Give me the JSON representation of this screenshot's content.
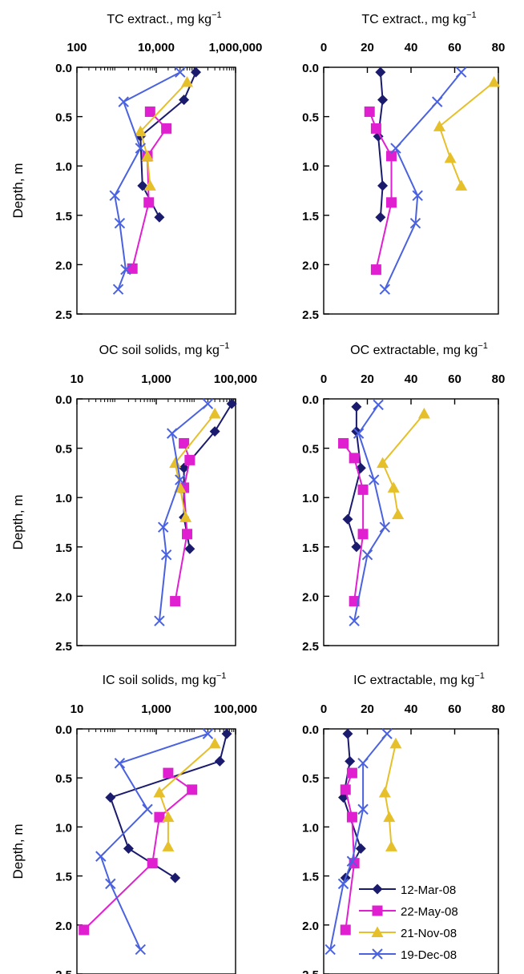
{
  "colors": {
    "12-Mar-08": "#1b1b6e",
    "22-May-08": "#e020d0",
    "21-Nov-08": "#e6c02a",
    "19-Dec-08": "#4a62e0"
  },
  "markers": {
    "12-Mar-08": "diamond",
    "22-May-08": "square",
    "21-Nov-08": "triangle",
    "19-Dec-08": "x"
  },
  "legend": [
    "12-Mar-08",
    "22-May-08",
    "21-Nov-08",
    "19-Dec-08"
  ],
  "chart_data": [
    {
      "type": "line",
      "title": "TC extract., mg kg",
      "title_sup": "−1",
      "ylabel": "Depth, m",
      "xscale": "log",
      "xlim": [
        100,
        1000000
      ],
      "xticks": [
        100,
        10000,
        1000000
      ],
      "xtick_labels": [
        "100",
        "10,000",
        "1,000,000"
      ],
      "ylim": [
        0,
        2.5
      ],
      "yticks": [
        0.0,
        0.5,
        1.0,
        1.5,
        2.0,
        2.5
      ],
      "ytick_labels": [
        "0.0",
        "0.5",
        "1.0",
        "1.5",
        "2.0",
        "2.5"
      ],
      "series": [
        {
          "name": "12-Mar-08",
          "points": [
            [
              100000,
              0.05
            ],
            [
              50000,
              0.33
            ],
            [
              4000,
              0.7
            ],
            [
              4500,
              1.2
            ],
            [
              12000,
              1.52
            ]
          ]
        },
        {
          "name": "22-May-08",
          "points": [
            [
              7000,
              0.45
            ],
            [
              18000,
              0.62
            ],
            [
              6000,
              0.9
            ],
            [
              6500,
              1.37
            ],
            [
              2500,
              2.04
            ]
          ]
        },
        {
          "name": "21-Nov-08",
          "points": [
            [
              60000,
              0.15
            ],
            [
              4000,
              0.65
            ],
            [
              6000,
              0.9
            ],
            [
              7000,
              1.2
            ]
          ]
        },
        {
          "name": "19-Dec-08",
          "points": [
            [
              40000,
              0.05
            ],
            [
              1500,
              0.35
            ],
            [
              4000,
              0.82
            ],
            [
              900,
              1.3
            ],
            [
              1200,
              1.58
            ],
            [
              1700,
              2.05
            ],
            [
              1100,
              2.25
            ]
          ]
        }
      ]
    },
    {
      "type": "line",
      "title": "TC extract., mg kg",
      "title_sup": "−1",
      "ylabel": "",
      "xscale": "linear",
      "xlim": [
        0,
        80
      ],
      "xticks": [
        0,
        20,
        40,
        60,
        80
      ],
      "xtick_labels": [
        "0",
        "20",
        "40",
        "60",
        "80"
      ],
      "ylim": [
        0,
        2.5
      ],
      "yticks": [
        0.0,
        0.5,
        1.0,
        1.5,
        2.0,
        2.5
      ],
      "ytick_labels": [
        "0.0",
        "0.5",
        "1.0",
        "1.5",
        "2.0",
        "2.5"
      ],
      "series": [
        {
          "name": "12-Mar-08",
          "points": [
            [
              26,
              0.05
            ],
            [
              27,
              0.33
            ],
            [
              25,
              0.7
            ],
            [
              27,
              1.2
            ],
            [
              26,
              1.52
            ]
          ]
        },
        {
          "name": "22-May-08",
          "points": [
            [
              21,
              0.45
            ],
            [
              24,
              0.62
            ],
            [
              31,
              0.9
            ],
            [
              31,
              1.37
            ],
            [
              24,
              2.05
            ]
          ]
        },
        {
          "name": "21-Nov-08",
          "points": [
            [
              78,
              0.15
            ],
            [
              53,
              0.6
            ],
            [
              58,
              0.92
            ],
            [
              63,
              1.2
            ]
          ]
        },
        {
          "name": "19-Dec-08",
          "points": [
            [
              63,
              0.05
            ],
            [
              52,
              0.35
            ],
            [
              33,
              0.82
            ],
            [
              43,
              1.3
            ],
            [
              42,
              1.58
            ],
            [
              28,
              2.25
            ]
          ]
        }
      ]
    },
    {
      "type": "line",
      "title": "OC soil solids, mg kg",
      "title_sup": "−1",
      "ylabel": "Depth, m",
      "xscale": "log",
      "xlim": [
        10,
        100000
      ],
      "xticks": [
        10,
        1000,
        100000
      ],
      "xtick_labels": [
        "10",
        "1,000",
        "100,000"
      ],
      "ylim": [
        0,
        2.5
      ],
      "yticks": [
        0.0,
        0.5,
        1.0,
        1.5,
        2.0,
        2.5
      ],
      "ytick_labels": [
        "0.0",
        "0.5",
        "1.0",
        "1.5",
        "2.0",
        "2.5"
      ],
      "series": [
        {
          "name": "12-Mar-08",
          "points": [
            [
              80000,
              0.05
            ],
            [
              30000,
              0.33
            ],
            [
              5000,
              0.7
            ],
            [
              5000,
              1.2
            ],
            [
              7000,
              1.52
            ]
          ]
        },
        {
          "name": "22-May-08",
          "points": [
            [
              5000,
              0.45
            ],
            [
              7000,
              0.62
            ],
            [
              5000,
              0.9
            ],
            [
              6000,
              1.37
            ],
            [
              3000,
              2.05
            ]
          ]
        },
        {
          "name": "21-Nov-08",
          "points": [
            [
              30000,
              0.15
            ],
            [
              3000,
              0.65
            ],
            [
              4000,
              0.9
            ],
            [
              5500,
              1.2
            ]
          ]
        },
        {
          "name": "19-Dec-08",
          "points": [
            [
              20000,
              0.05
            ],
            [
              2500,
              0.35
            ],
            [
              4000,
              0.82
            ],
            [
              1500,
              1.3
            ],
            [
              1800,
              1.58
            ],
            [
              1200,
              2.25
            ]
          ]
        }
      ]
    },
    {
      "type": "line",
      "title": "OC extractable, mg kg",
      "title_sup": "−1",
      "ylabel": "",
      "xscale": "linear",
      "xlim": [
        0,
        80
      ],
      "xticks": [
        0,
        20,
        40,
        60,
        80
      ],
      "xtick_labels": [
        "0",
        "20",
        "40",
        "60",
        "80"
      ],
      "ylim": [
        0,
        2.5
      ],
      "yticks": [
        0.0,
        0.5,
        1.0,
        1.5,
        2.0,
        2.5
      ],
      "ytick_labels": [
        "0.0",
        "0.5",
        "1.0",
        "1.5",
        "2.0",
        "2.5"
      ],
      "series": [
        {
          "name": "12-Mar-08",
          "points": [
            [
              15,
              0.08
            ],
            [
              15,
              0.33
            ],
            [
              17,
              0.7
            ],
            [
              11,
              1.22
            ],
            [
              15,
              1.5
            ]
          ]
        },
        {
          "name": "22-May-08",
          "points": [
            [
              9,
              0.45
            ],
            [
              14,
              0.6
            ],
            [
              18,
              0.92
            ],
            [
              18,
              1.37
            ],
            [
              14,
              2.05
            ]
          ]
        },
        {
          "name": "21-Nov-08",
          "points": [
            [
              46,
              0.15
            ],
            [
              27,
              0.65
            ],
            [
              32,
              0.9
            ],
            [
              34,
              1.17
            ]
          ]
        },
        {
          "name": "19-Dec-08",
          "points": [
            [
              25,
              0.06
            ],
            [
              16,
              0.35
            ],
            [
              23,
              0.82
            ],
            [
              28,
              1.3
            ],
            [
              20,
              1.58
            ],
            [
              14,
              2.25
            ]
          ]
        }
      ]
    },
    {
      "type": "line",
      "title": "IC soil solids, mg kg",
      "title_sup": "−1",
      "ylabel": "Depth, m",
      "xscale": "log",
      "xlim": [
        10,
        100000
      ],
      "xticks": [
        10,
        1000,
        100000
      ],
      "xtick_labels": [
        "10",
        "1,000",
        "100,000"
      ],
      "ylim": [
        0,
        2.5
      ],
      "yticks": [
        0.0,
        0.5,
        1.0,
        1.5,
        2.0,
        2.5
      ],
      "ytick_labels": [
        "0.0",
        "0.5",
        "1.0",
        "1.5",
        "2.0",
        "2.5"
      ],
      "series": [
        {
          "name": "12-Mar-08",
          "points": [
            [
              60000,
              0.05
            ],
            [
              40000,
              0.33
            ],
            [
              70,
              0.7
            ],
            [
              200,
              1.22
            ],
            [
              3000,
              1.52
            ]
          ]
        },
        {
          "name": "22-May-08",
          "points": [
            [
              2000,
              0.45
            ],
            [
              8000,
              0.62
            ],
            [
              1200,
              0.9
            ],
            [
              800,
              1.37
            ],
            [
              15,
              2.05
            ]
          ]
        },
        {
          "name": "21-Nov-08",
          "points": [
            [
              30000,
              0.15
            ],
            [
              1200,
              0.65
            ],
            [
              2000,
              0.9
            ],
            [
              2000,
              1.2
            ]
          ]
        },
        {
          "name": "19-Dec-08",
          "points": [
            [
              20000,
              0.05
            ],
            [
              120,
              0.35
            ],
            [
              600,
              0.82
            ],
            [
              40,
              1.3
            ],
            [
              70,
              1.58
            ],
            [
              400,
              2.25
            ]
          ]
        }
      ]
    },
    {
      "type": "line",
      "title": "IC extractable, mg kg",
      "title_sup": "−1",
      "ylabel": "",
      "xscale": "linear",
      "xlim": [
        0,
        80
      ],
      "xticks": [
        0,
        20,
        40,
        60,
        80
      ],
      "xtick_labels": [
        "0",
        "20",
        "40",
        "60",
        "80"
      ],
      "ylim": [
        0,
        2.5
      ],
      "yticks": [
        0.0,
        0.5,
        1.0,
        1.5,
        2.0,
        2.5
      ],
      "ytick_labels": [
        "0.0",
        "0.5",
        "1.0",
        "1.5",
        "2.0",
        "2.5"
      ],
      "series": [
        {
          "name": "12-Mar-08",
          "points": [
            [
              11,
              0.05
            ],
            [
              12,
              0.33
            ],
            [
              9,
              0.7
            ],
            [
              17,
              1.22
            ],
            [
              10,
              1.52
            ]
          ]
        },
        {
          "name": "22-May-08",
          "points": [
            [
              13,
              0.45
            ],
            [
              10,
              0.62
            ],
            [
              13,
              0.9
            ],
            [
              14,
              1.37
            ],
            [
              10,
              2.05
            ]
          ]
        },
        {
          "name": "21-Nov-08",
          "points": [
            [
              33,
              0.15
            ],
            [
              28,
              0.65
            ],
            [
              30,
              0.9
            ],
            [
              31,
              1.2
            ]
          ]
        },
        {
          "name": "19-Dec-08",
          "points": [
            [
              29,
              0.05
            ],
            [
              18,
              0.35
            ],
            [
              18,
              0.82
            ],
            [
              13,
              1.35
            ],
            [
              9,
              1.58
            ],
            [
              3,
              2.25
            ]
          ]
        }
      ]
    }
  ]
}
